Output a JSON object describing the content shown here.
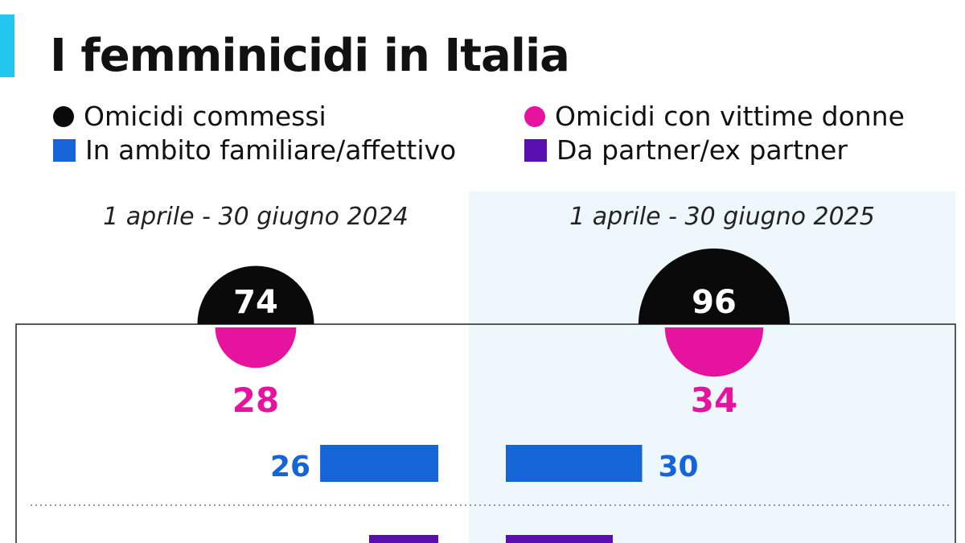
{
  "title": "I femminicidi in Italia",
  "colors": {
    "accent": "#22c6ee",
    "total": "#0a0a0a",
    "women": "#e5139e",
    "family": "#1565d8",
    "partner": "#5a0fb0",
    "panel_bg": "#eef7fc"
  },
  "legend": [
    {
      "label": "Omicidi commessi",
      "shape": "circle",
      "color": "#0a0a0a"
    },
    {
      "label": "Omicidi con vittime donne",
      "shape": "circle",
      "color": "#e5139e"
    },
    {
      "label": "In ambito familiare/affettivo",
      "shape": "square",
      "color": "#1565d8"
    },
    {
      "label": "Da partner/ex partner",
      "shape": "square",
      "color": "#5a0fb0"
    }
  ],
  "chart_data": {
    "type": "bar",
    "title": "I femminicidi in Italia",
    "categories": [
      "1 aprile - 30 giugno 2024",
      "1 aprile - 30 giugno 2025"
    ],
    "series": [
      {
        "name": "Omicidi commessi",
        "values": [
          74,
          96
        ]
      },
      {
        "name": "Omicidi con vittime donne",
        "values": [
          28,
          34
        ]
      },
      {
        "name": "In ambito familiare/affettivo",
        "values": [
          26,
          30
        ]
      },
      {
        "name": "Da partner/ex partner",
        "values": [
          null,
          null
        ]
      }
    ]
  }
}
